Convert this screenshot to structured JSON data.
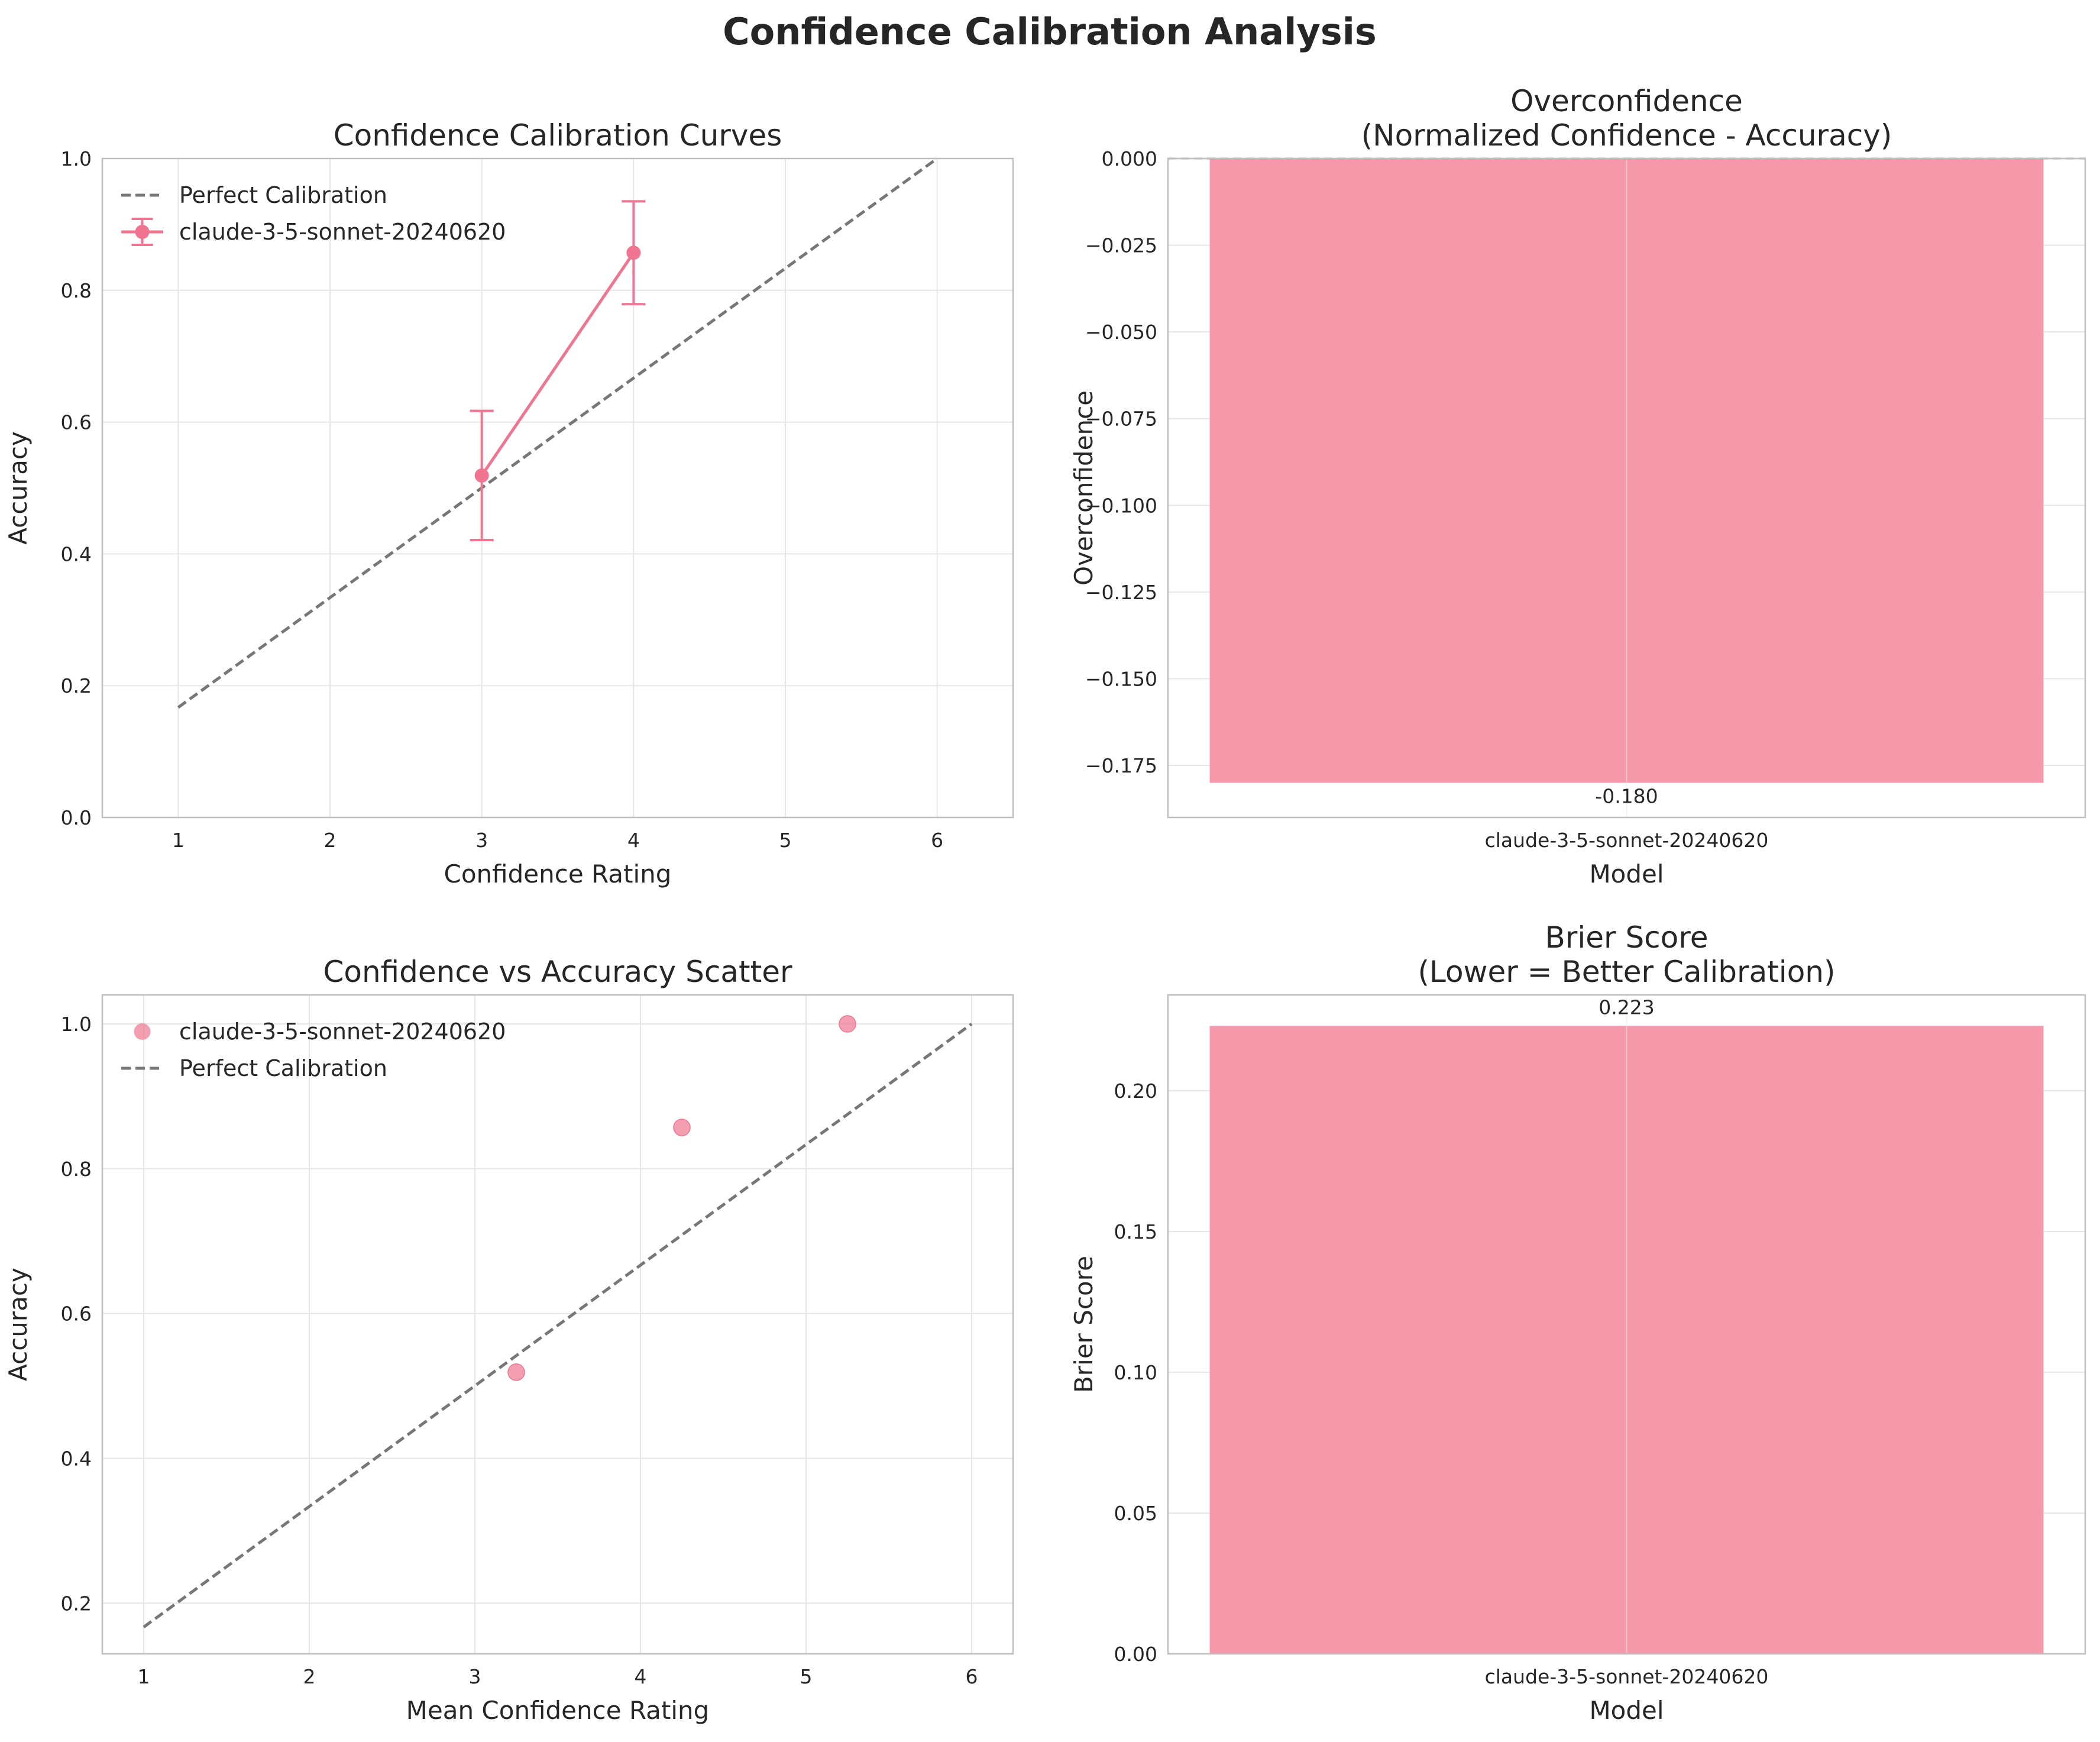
{
  "figure_title": "Confidence Calibration Analysis",
  "colors": {
    "series": "#f07590",
    "bar": "#f69aab",
    "perfect": "#777777",
    "grid": "#e6e6e6",
    "frame": "#bfbfbf"
  },
  "chart_data": [
    {
      "type": "line",
      "title": "Confidence Calibration Curves",
      "xlabel": "Confidence Rating",
      "ylabel": "Accuracy",
      "xlim": [
        0.5,
        6.5
      ],
      "ylim": [
        0,
        1.0
      ],
      "xticks": [
        1,
        2,
        3,
        4,
        5,
        6
      ],
      "yticks": [
        0.0,
        0.2,
        0.4,
        0.6,
        0.8,
        1.0
      ],
      "ytick_decimals": 1,
      "grid": true,
      "legend_position": "upper-left",
      "reference_line": {
        "name": "Perfect Calibration",
        "x": [
          1,
          6
        ],
        "y": [
          0.167,
          1.0
        ],
        "style": "dashed"
      },
      "series": [
        {
          "name": "claude-3-5-sonnet-20240620",
          "x": [
            3,
            4
          ],
          "y": [
            0.519,
            0.857
          ],
          "yerr": [
            0.098,
            0.078
          ]
        }
      ]
    },
    {
      "type": "bar",
      "title": "Overconfidence\n(Normalized Confidence - Accuracy)",
      "xlabel": "Model",
      "ylabel": "Overconfidence",
      "categories": [
        "claude-3-5-sonnet-20240620"
      ],
      "values": [
        -0.18
      ],
      "data_labels": [
        "-0.180"
      ],
      "ylim": [
        -0.19,
        0.0
      ],
      "yticks": [
        0.0,
        -0.025,
        -0.05,
        -0.075,
        -0.1,
        -0.125,
        -0.15,
        -0.175
      ],
      "ytick_decimals": 3,
      "zero_line": true,
      "grid": true
    },
    {
      "type": "scatter",
      "title": "Confidence vs Accuracy Scatter",
      "xlabel": "Mean Confidence Rating",
      "ylabel": "Accuracy",
      "xlim": [
        0.75,
        6.25
      ],
      "ylim": [
        0.13,
        1.04
      ],
      "xticks": [
        1,
        2,
        3,
        4,
        5,
        6
      ],
      "yticks": [
        0.2,
        0.4,
        0.6,
        0.8,
        1.0
      ],
      "ytick_decimals": 1,
      "grid": true,
      "legend_position": "upper-left",
      "reference_line": {
        "name": "Perfect Calibration",
        "x": [
          1,
          6
        ],
        "y": [
          0.167,
          1.0
        ],
        "style": "dashed"
      },
      "series": [
        {
          "name": "claude-3-5-sonnet-20240620",
          "x": [
            3.25,
            4.25,
            5.25
          ],
          "y": [
            0.519,
            0.857,
            1.0
          ]
        }
      ]
    },
    {
      "type": "bar",
      "title": "Brier Score\n(Lower = Better Calibration)",
      "xlabel": "Model",
      "ylabel": "Brier Score",
      "categories": [
        "claude-3-5-sonnet-20240620"
      ],
      "values": [
        0.223
      ],
      "data_labels": [
        "0.223"
      ],
      "ylim": [
        0.0,
        0.234
      ],
      "yticks": [
        0.0,
        0.05,
        0.1,
        0.15,
        0.2
      ],
      "ytick_decimals": 2,
      "grid": true
    }
  ]
}
